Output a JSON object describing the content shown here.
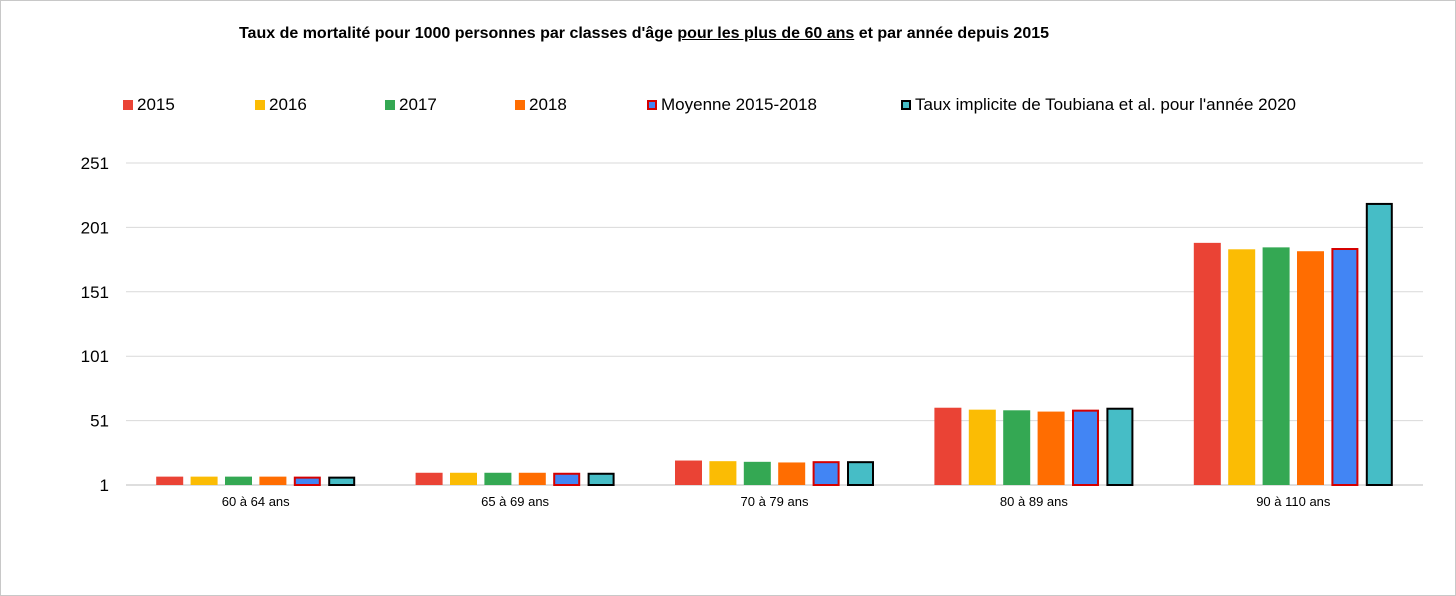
{
  "chart_data": {
    "type": "bar",
    "title_parts": {
      "before": "Taux de mortalité pour 1000 personnes par classes d'âge ",
      "underlined": "pour les plus de 60 ans",
      "after": " et par année depuis 2015"
    },
    "categories": [
      "60 à 64 ans",
      "65 à 69 ans",
      "70 à 79 ans",
      "80 à 89 ans",
      "90 à 110 ans"
    ],
    "yticks": [
      1,
      51,
      101,
      151,
      201,
      251
    ],
    "ylim": [
      1,
      251
    ],
    "grid": true,
    "legend_position": "top",
    "xlabel": "",
    "ylabel": "",
    "series": [
      {
        "name": "2015",
        "color": "#EA4335",
        "border": "none",
        "values": [
          7.5,
          10.5,
          20,
          61,
          189
        ]
      },
      {
        "name": "2016",
        "color": "#FBBC04",
        "border": "none",
        "values": [
          7.5,
          10.5,
          19.5,
          59.5,
          184
        ]
      },
      {
        "name": "2017",
        "color": "#34A853",
        "border": "none",
        "values": [
          7.5,
          10.5,
          19,
          59,
          185.5
        ]
      },
      {
        "name": "2018",
        "color": "#FF6D01",
        "border": "none",
        "values": [
          7.5,
          10.5,
          18.5,
          58,
          182.5
        ]
      },
      {
        "name": "Moyenne 2015-2018",
        "color": "#4285F4",
        "border": "#D50000",
        "values": [
          7.5,
          10.5,
          19.5,
          59.5,
          185
        ]
      },
      {
        "name": "Taux implicite de Toubiana et al. pour l'année 2020",
        "color": "#46BDC6",
        "border": "#000000",
        "values": [
          7.5,
          10.5,
          19.5,
          61,
          220
        ]
      }
    ]
  }
}
